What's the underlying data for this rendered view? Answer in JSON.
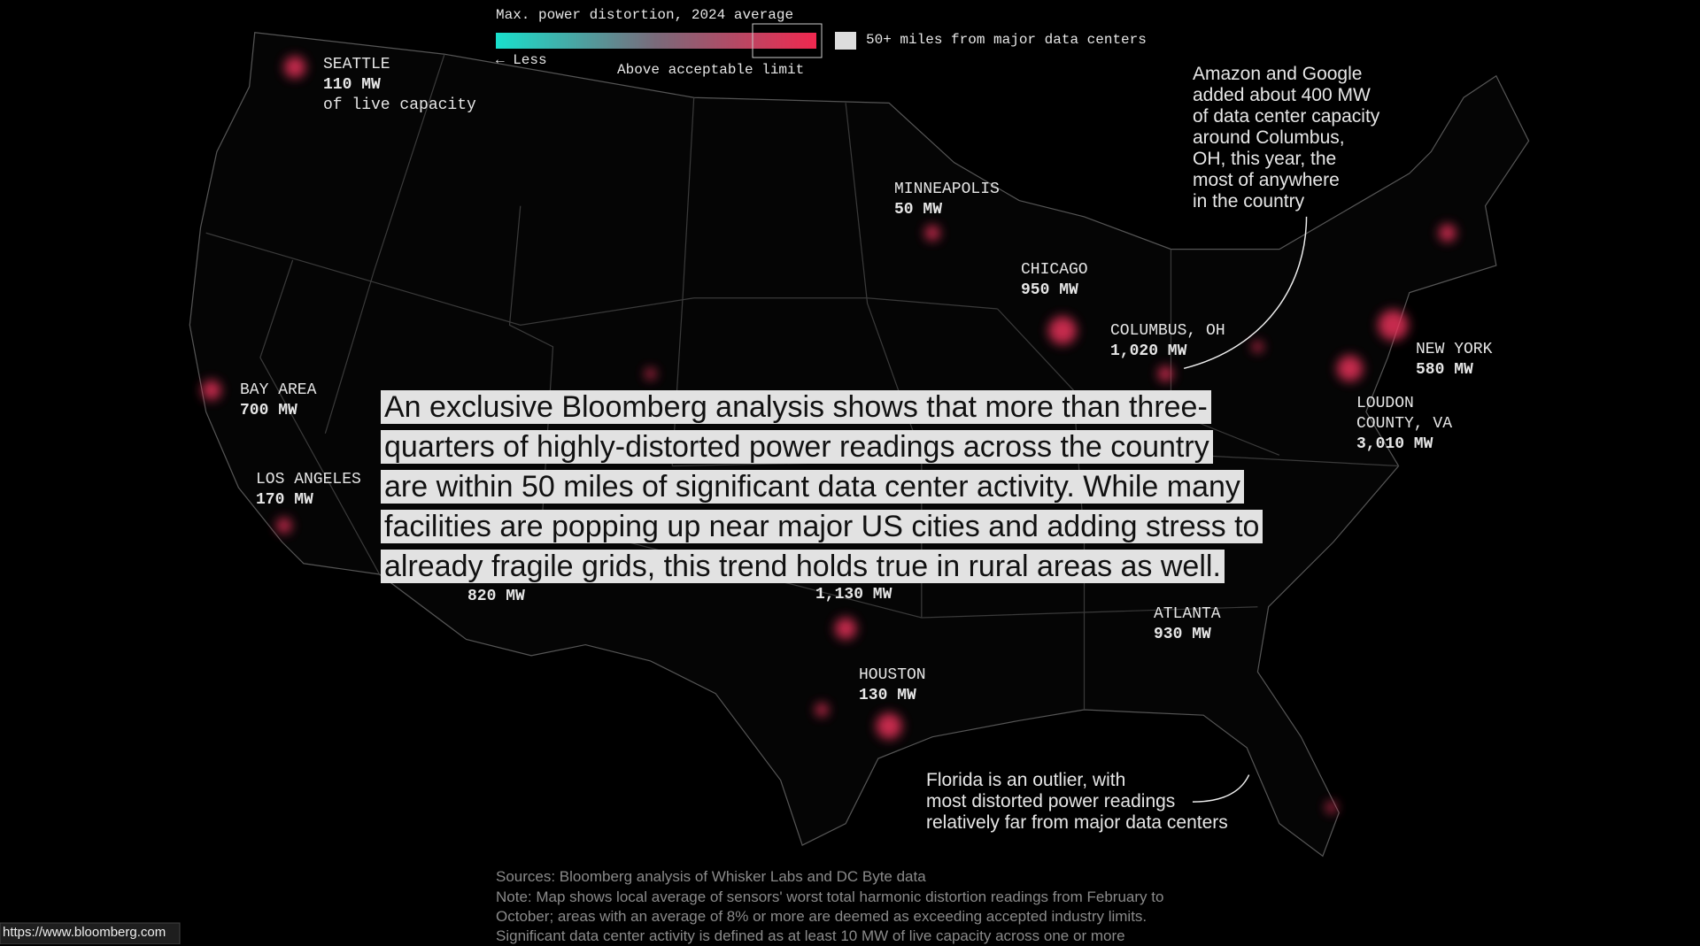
{
  "legend": {
    "title": "Max. power distortion, 2024 average",
    "less": "← Less",
    "limit": "Above acceptable limit",
    "far": "50+ miles from major data centers"
  },
  "cities": [
    {
      "name": "SEATTLE",
      "capacity": "110 MW",
      "extra": "of live capacity"
    },
    {
      "name": "MINNEAPOLIS",
      "capacity": "50 MW"
    },
    {
      "name": "CHICAGO",
      "capacity": "950 MW"
    },
    {
      "name": "COLUMBUS, OH",
      "capacity": "1,020 MW"
    },
    {
      "name": "NEW YORK",
      "capacity": "580 MW"
    },
    {
      "name": "LOUDON",
      "name2": "COUNTY, VA",
      "capacity": "3,010 MW"
    },
    {
      "name": "BAY AREA",
      "capacity": "700 MW"
    },
    {
      "name": "LOS ANGELES",
      "capacity": "170 MW"
    },
    {
      "capacity": "820 MW"
    },
    {
      "capacity": "1,130 MW"
    },
    {
      "name": "ATLANTA",
      "capacity": "930 MW"
    },
    {
      "name": "HOUSTON",
      "capacity": "130 MW"
    }
  ],
  "annotations": {
    "columbus": [
      "Amazon and Google",
      "added about 400 MW",
      "of data center capacity",
      "around Columbus,",
      "OH, this year, the",
      "most of anywhere",
      "in the country"
    ],
    "florida": [
      "Florida is an outlier, with",
      "most distorted power readings",
      "relatively far from major data centers"
    ]
  },
  "overlay": [
    "An exclusive Bloomberg analysis shows that more than three-",
    "quarters of highly-distorted power readings across the country",
    "are within 50 miles of significant data center activity. While many",
    "facilities are popping up near major US cities and adding stress to",
    "already fragile grids, this trend holds true in rural areas as well."
  ],
  "footer": {
    "sources": "Sources: Bloomberg analysis of Whisker Labs and DC Byte data",
    "note": [
      "Note: Map shows local average of sensors' worst total harmonic distortion readings from February to",
      "October; areas with an average of 8% or more are deemed as exceeding accepted industry limits.",
      "Significant data center activity is defined as at least 10 MW of live capacity across one or more"
    ]
  },
  "status_url": "https://www.bloomberg.com"
}
